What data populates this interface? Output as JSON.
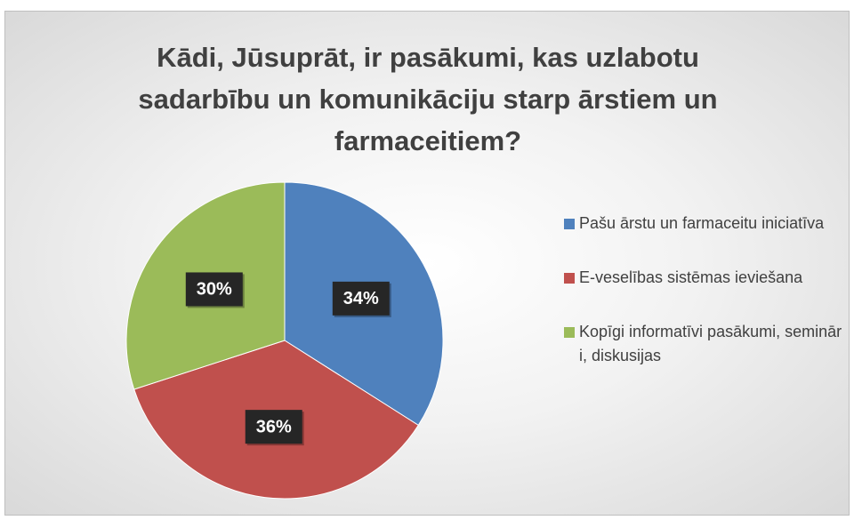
{
  "chart_data": {
    "type": "pie",
    "title": "Kādi, Jūsuprāt, ir pasākumi, kas uzlabotu sadarbību un komunikāciju starp ārstiem un farmaceitiem?",
    "categories": [
      "Pašu ārstu un farmaceitu iniciatīva",
      "E-veselības sistēmas ieviešana",
      "Kopīgi informatīvi pasākumi, semināri, diskusijas"
    ],
    "values": [
      34,
      36,
      30
    ],
    "value_labels": [
      "34%",
      "36%",
      "30%"
    ],
    "colors": [
      "#4f81bd",
      "#c0504d",
      "#9bbb59"
    ],
    "legend": "right"
  }
}
